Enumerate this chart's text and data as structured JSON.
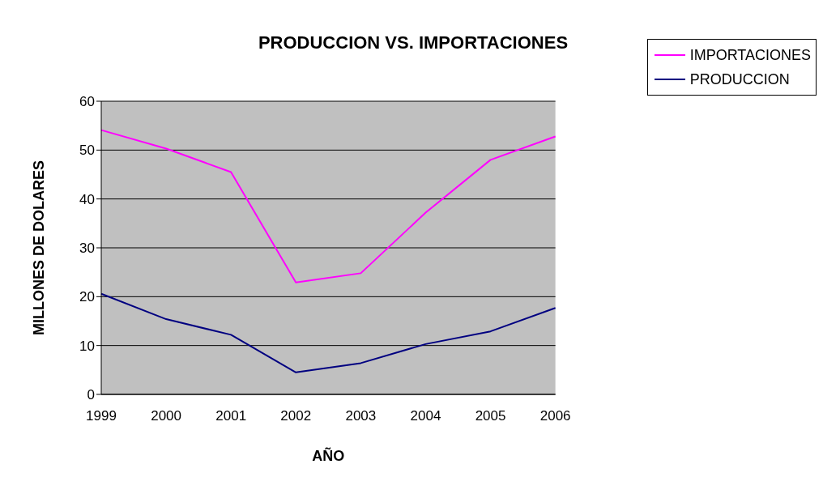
{
  "chart_data": {
    "type": "line",
    "title": "PRODUCCION VS. IMPORTACIONES",
    "xlabel": "AÑO",
    "ylabel": "MILLONES DE DOLARES",
    "categories": [
      "1999",
      "2000",
      "2001",
      "2002",
      "2003",
      "2004",
      "2005",
      "2006"
    ],
    "series": [
      {
        "name": "IMPORTACIONES",
        "color": "#ff00ff",
        "values": [
          54.1,
          50.3,
          45.5,
          22.9,
          24.8,
          37.2,
          48.0,
          52.8
        ]
      },
      {
        "name": "PRODUCCION",
        "color": "#000080",
        "values": [
          20.6,
          15.4,
          12.2,
          4.5,
          6.4,
          10.3,
          12.9,
          17.7
        ]
      }
    ],
    "ylim": [
      0,
      60
    ],
    "yticks": [
      0,
      10,
      20,
      30,
      40,
      50,
      60
    ],
    "grid": "y",
    "legend": "top right",
    "marker": "none",
    "line_style": "solid"
  }
}
